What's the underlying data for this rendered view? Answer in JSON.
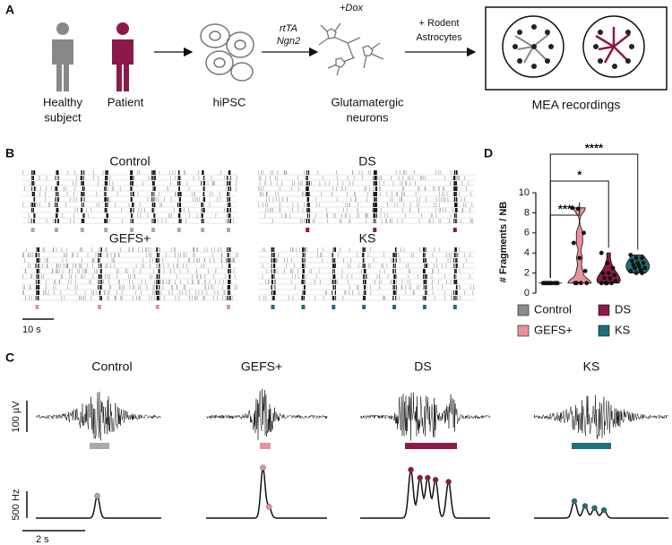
{
  "panel_a": {
    "label": "A",
    "healthy": [
      "Healthy",
      "subject"
    ],
    "patient": "Patient",
    "hipsc": "hiPSC",
    "factors": [
      "rtTA",
      "Ngn2"
    ],
    "dox": "+Dox",
    "neurons": [
      "Glutamatergic",
      "neurons"
    ],
    "astrocytes": [
      "+ Rodent",
      "Astrocytes"
    ],
    "mea": "MEA recordings"
  },
  "panel_b": {
    "label": "B",
    "titles": [
      "Control",
      "DS",
      "GEFS+",
      "KS"
    ],
    "scale": "10 s"
  },
  "panel_c": {
    "label": "C",
    "titles": [
      "Control",
      "GEFS+",
      "DS",
      "KS"
    ],
    "scale_voltage": "100 µV",
    "scale_rate": "500 Hz",
    "scale_time": "2 s"
  },
  "chart_data": {
    "type": "violin",
    "label": "D",
    "ylabel": "# Fragments / NB",
    "ylim": [
      0,
      10
    ],
    "yticks": [
      0,
      2,
      4,
      6,
      8,
      10
    ],
    "series": [
      {
        "name": "Control",
        "color": "#8c8c8c",
        "values": [
          1,
          1,
          1,
          1,
          1,
          1,
          1,
          1,
          1,
          1
        ]
      },
      {
        "name": "GEFS+",
        "color": "#e8919a",
        "values": [
          8.5,
          8.4,
          6,
          5,
          3.5,
          2.2,
          1,
          1,
          1,
          1
        ]
      },
      {
        "name": "DS",
        "color": "#8b1a4a",
        "values": [
          4,
          3,
          2.5,
          2,
          2,
          1.8,
          1.5,
          1.5,
          1.2,
          1,
          1,
          1,
          1
        ]
      },
      {
        "name": "KS",
        "color": "#1e6f7a",
        "values": [
          3.8,
          3.5,
          3.5,
          3.2,
          3,
          3,
          2.8,
          2.7,
          2.5,
          2.5,
          2.3,
          2.2,
          2,
          2
        ]
      }
    ],
    "significance": [
      "***",
      "*",
      "****"
    ]
  }
}
